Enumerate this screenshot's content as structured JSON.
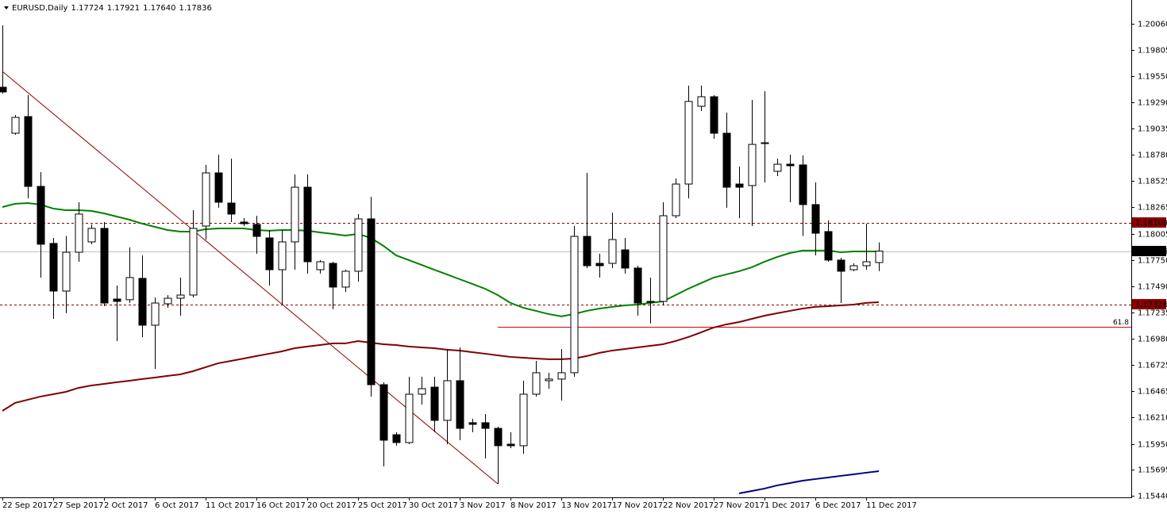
{
  "chart_data": {
    "type": "candlestick",
    "title": "EURUSD,Daily",
    "ohlc": [
      1.17724,
      1.17921,
      {
        "value": 1.1764,
        "label": "1.17640"
      },
      1.17836
    ],
    "categories": [
      "22 Sep 2017",
      null,
      null,
      null,
      "27 Sep 2017",
      null,
      null,
      null,
      "2 Oct 2017",
      null,
      null,
      null,
      "6 Oct 2017",
      null,
      null,
      null,
      "11 Oct 2017",
      null,
      null,
      null,
      "16 Oct 2017",
      null,
      null,
      null,
      "20 Oct 2017",
      null,
      null,
      null,
      "25 Oct 2017",
      null,
      null,
      null,
      "30 Oct 2017",
      null,
      null,
      null,
      "3 Nov 2017",
      null,
      null,
      null,
      "8 Nov 2017",
      null,
      null,
      null,
      "13 Nov 2017",
      null,
      null,
      null,
      "17 Nov 2017",
      null,
      null,
      null,
      "22 Nov 2017",
      null,
      null,
      null,
      "27 Nov 2017",
      null,
      null,
      null,
      "1 Dec 2017",
      null,
      null,
      null,
      "6 Dec 2017",
      null,
      null,
      null,
      "11 Dec 2017",
      null
    ],
    "open": [
      1.19439,
      1.18989,
      1.19152,
      1.18469,
      1.17911,
      1.17445,
      1.17825,
      1.17926,
      1.18058,
      1.17367,
      1.1736,
      1.17569,
      1.17111,
      1.17321,
      1.17375,
      1.17406,
      1.18081,
      1.18601,
      1.18306,
      1.1812,
      1.18097,
      1.17965,
      1.17654,
      1.17926,
      1.18461,
      1.17654,
      1.17716,
      1.17484,
      1.17639,
      1.18151,
      1.16529,
      1.1604,
      1.15963,
      1.16436,
      1.16505,
      1.1618,
      1.16568,
      1.16157,
      1.16157,
      1.16102,
      1.15947,
      1.15932,
      1.16436,
      1.16568,
      1.16584,
      1.16646,
      1.1798,
      1.17716,
      1.17716,
      1.17848,
      1.1767,
      1.17344,
      1.17344,
      1.18182,
      1.18492,
      1.19253,
      1.19346,
      1.18989,
      1.18492,
      1.18477,
      1.18888,
      1.18617,
      1.18686,
      1.18679,
      1.18291,
      1.18027,
      1.17748,
      1.17654,
      1.17693,
      1.17724
    ],
    "high": [
      1.20044,
      1.19168,
      1.19362,
      1.18609,
      1.17965,
      1.17984,
      1.18314,
      1.18097,
      1.1812,
      1.17499,
      1.17872,
      1.17794,
      1.17383,
      1.17406,
      1.17577,
      1.18236,
      1.18679,
      1.1878,
      1.18741,
      1.18159,
      1.18182,
      1.18042,
      1.18042,
      1.18586,
      1.18586,
      1.17748,
      1.17732,
      1.17654,
      1.18198,
      1.18368,
      1.16552,
      1.16064,
      1.16607,
      1.16607,
      1.16607,
      1.16878,
      1.16894,
      1.16196,
      1.16242,
      1.16118,
      1.16064,
      1.16568,
      1.16762,
      1.16646,
      1.16878,
      1.18081,
      1.18601,
      1.1781,
      1.18213,
      1.17965,
      1.17693,
      1.17577,
      1.18314,
      1.18547,
      1.19455,
      1.19455,
      1.19362,
      1.19191,
      1.18663,
      1.19315,
      1.194,
      1.18741,
      1.1878,
      1.18772,
      1.18508,
      1.18136,
      1.17771,
      1.17716,
      1.18104,
      1.17921
    ],
    "low": [
      1.19377,
      1.18974,
      1.18353,
      1.17577,
      1.17173,
      1.17228,
      1.17732,
      1.17903,
      1.17297,
      1.16956,
      1.17328,
      1.16995,
      1.16684,
      1.17282,
      1.17204,
      1.17383,
      1.17949,
      1.1826,
      1.1812,
      1.18081,
      1.1781,
      1.17499,
      1.17305,
      1.17654,
      1.17616,
      1.17616,
      1.17266,
      1.17437,
      1.17538,
      1.16413,
      1.1573,
      1.15932,
      1.15947,
      1.16335,
      1.16064,
      1.15947,
      1.15986,
      1.16064,
      1.15808,
      1.15559,
      1.15908,
      1.15854,
      1.16413,
      1.1649,
      1.16374,
      1.16607,
      1.1767,
      1.17577,
      1.1767,
      1.17616,
      1.17204,
      1.17127,
      1.17305,
      1.18159,
      1.18353,
      1.19206,
      1.18935,
      1.1826,
      1.18159,
      1.18081,
      1.18508,
      1.1857,
      1.18314,
      1.17984,
      1.17794,
      1.17732,
      1.17328,
      1.17639,
      1.17654,
      1.1764
    ],
    "close": [
      1.19393,
      1.19144,
      1.18469,
      1.17903,
      1.17445,
      1.17825,
      1.18198,
      1.18058,
      1.17328,
      1.17344,
      1.17577,
      1.17111,
      1.17328,
      1.17375,
      1.17406,
      1.18058,
      1.18601,
      1.18314,
      1.18198,
      1.18104,
      1.1798,
      1.17654,
      1.17926,
      1.18461,
      1.17732,
      1.17732,
      1.17484,
      1.17639,
      1.18151,
      1.16529,
      1.15986,
      1.15963,
      1.16436,
      1.1649,
      1.1618,
      1.16568,
      1.16102,
      1.16141,
      1.16102,
      1.15932,
      1.15932,
      1.16436,
      1.16646,
      1.16584,
      1.16646,
      1.1798,
      1.17693,
      1.17693,
      1.17949,
      1.1767,
      1.17328,
      1.17336,
      1.18182,
      1.18492,
      1.193,
      1.19346,
      1.18989,
      1.18461,
      1.18461,
      1.1888,
      1.18896,
      1.18686,
      1.18671,
      1.18291,
      1.18011,
      1.17748,
      1.17639,
      1.17693,
      1.17732,
      1.17836
    ],
    "up_color": "#ffffff",
    "down_color": "#000000",
    "lines": [
      {
        "color": "#008000",
        "values": [
          1.18267,
          1.18299,
          1.18306,
          1.18291,
          1.18252,
          1.18236,
          1.18236,
          1.18229,
          1.18205,
          1.18174,
          1.18143,
          1.18105,
          1.18073,
          1.18042,
          1.18027,
          1.18027,
          1.1805,
          1.18058,
          1.18058,
          1.18058,
          1.18042,
          1.18035,
          1.18042,
          1.18042,
          1.18035,
          1.18019,
          1.18004,
          1.17988,
          1.18004,
          1.17965,
          1.17887,
          1.17794,
          1.17748,
          1.17701,
          1.17654,
          1.17608,
          1.17561,
          1.17515,
          1.17468,
          1.17406,
          1.17329,
          1.17282,
          1.17251,
          1.1722,
          1.17197,
          1.1722,
          1.17251,
          1.17274,
          1.1729,
          1.17305,
          1.17313,
          1.17329,
          1.17344,
          1.17406,
          1.17468,
          1.17523,
          1.17577,
          1.17608,
          1.17639,
          1.17678,
          1.17732,
          1.17779,
          1.17817,
          1.17841,
          1.17841,
          1.17841,
          1.17825,
          1.17833,
          1.17833,
          1.17833
        ]
      },
      {
        "color": "#800000",
        "values": [
          1.16273,
          1.16351,
          1.16382,
          1.16413,
          1.16436,
          1.16459,
          1.16498,
          1.16521,
          1.16537,
          1.16553,
          1.16568,
          1.16584,
          1.16599,
          1.16615,
          1.1663,
          1.16661,
          1.167,
          1.16739,
          1.16762,
          1.16785,
          1.16809,
          1.16832,
          1.16855,
          1.16886,
          1.16902,
          1.16917,
          1.16933,
          1.16933,
          1.16956,
          1.1694,
          1.16925,
          1.16917,
          1.16902,
          1.16894,
          1.16886,
          1.16871,
          1.16863,
          1.16847,
          1.16832,
          1.16816,
          1.16801,
          1.16793,
          1.16785,
          1.16778,
          1.16778,
          1.16785,
          1.16809,
          1.1684,
          1.16863,
          1.16878,
          1.16894,
          1.16909,
          1.16925,
          1.16956,
          1.16995,
          1.17041,
          1.17088,
          1.17119,
          1.17142,
          1.17173,
          1.17204,
          1.17228,
          1.17251,
          1.17274,
          1.1729,
          1.17297,
          1.17305,
          1.17313,
          1.17329,
          1.17336
        ]
      },
      {
        "color": "#000080",
        "values": [
          null,
          null,
          null,
          null,
          null,
          null,
          null,
          null,
          null,
          null,
          null,
          null,
          null,
          null,
          null,
          null,
          null,
          null,
          null,
          null,
          null,
          null,
          null,
          null,
          null,
          null,
          null,
          null,
          null,
          null,
          null,
          null,
          null,
          null,
          null,
          null,
          null,
          null,
          null,
          null,
          null,
          null,
          null,
          null,
          null,
          null,
          null,
          null,
          null,
          null,
          null,
          null,
          null,
          null,
          null,
          null,
          null,
          null,
          1.15466,
          1.15489,
          1.15513,
          1.15544,
          1.15567,
          1.1559,
          1.15606,
          1.15621,
          1.15637,
          1.15652,
          1.15668,
          1.15683
        ]
      }
    ],
    "levels": [
      1.18109,
      1.17316
    ],
    "level_color": "#8b0000",
    "price_line_color": "#c0c0c0",
    "fibo": {
      "label": "61.8",
      "value": 1.17096,
      "color": "#dd0000"
    },
    "trendline": {
      "values": [
        1.15559,
        1.19594
      ],
      "color": "#8b0000"
    },
    "ylim": [
      1.15427,
      1.20277
    ],
    "yticks": [
      {
        "value": 1.2006,
        "label": "1.20060"
      },
      1.19805,
      {
        "value": 1.1955,
        "label": "1.19550"
      },
      {
        "value": 1.1929,
        "label": "1.19290"
      },
      1.19035,
      {
        "value": 1.1878,
        "label": "1.18780"
      },
      1.18525,
      1.18265,
      1.18005,
      {
        "value": 1.1775,
        "label": "1.17750"
      },
      {
        "value": 1.1749,
        "label": "1.17490"
      },
      1.17235,
      {
        "value": 1.1698,
        "label": "1.16980"
      },
      1.16725,
      1.16465,
      {
        "value": 1.1621,
        "label": "1.16210"
      },
      {
        "value": 1.1595,
        "label": "1.15950"
      },
      1.15695,
      {
        "value": 1.1544,
        "label": "1.15440"
      }
    ]
  }
}
